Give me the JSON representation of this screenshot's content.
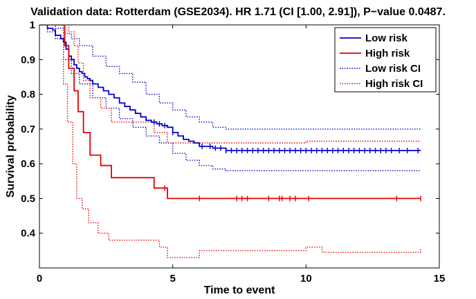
{
  "chart_data": {
    "type": "line",
    "title": "Validation data: Rotterdam (GSE2034). HR 1.71 (CI [1.00, 2.91]), P−value 0.0487.",
    "xlabel": "Time to event",
    "ylabel": "Survival probability",
    "xlim": [
      0,
      15
    ],
    "ylim": [
      0.3,
      1.0
    ],
    "xticks": [
      0,
      5,
      10,
      15
    ],
    "yticks": [
      0.4,
      0.5,
      0.6,
      0.7,
      0.8,
      0.9,
      1
    ],
    "xtick_labels": [
      "0",
      "5",
      "10",
      "15"
    ],
    "ytick_labels": [
      "0.4",
      "0.5",
      "0.6",
      "0.7",
      "0.8",
      "0.9",
      "1"
    ],
    "grid": false,
    "legend_position": "top-right",
    "series": [
      {
        "name": "Low risk",
        "color": "#0000cc",
        "style": "solid",
        "x": [
          0,
          0.15,
          0.3,
          0.5,
          0.6,
          0.8,
          0.9,
          1.0,
          1.1,
          1.2,
          1.3,
          1.4,
          1.5,
          1.6,
          1.7,
          1.8,
          1.9,
          2.0,
          2.2,
          2.4,
          2.6,
          2.8,
          3.0,
          3.2,
          3.4,
          3.6,
          3.8,
          4.0,
          4.2,
          4.4,
          4.6,
          4.8,
          5.0,
          5.2,
          5.4,
          5.6,
          5.8,
          6.0,
          6.5,
          7.0,
          14.3
        ],
        "y": [
          1.0,
          1.0,
          0.99,
          0.985,
          0.97,
          0.96,
          0.95,
          0.93,
          0.91,
          0.9,
          0.885,
          0.875,
          0.865,
          0.86,
          0.85,
          0.845,
          0.84,
          0.83,
          0.82,
          0.81,
          0.8,
          0.79,
          0.775,
          0.765,
          0.755,
          0.745,
          0.735,
          0.725,
          0.72,
          0.715,
          0.71,
          0.705,
          0.69,
          0.68,
          0.67,
          0.665,
          0.66,
          0.65,
          0.645,
          0.638,
          0.638
        ],
        "censor_x": [
          4.3,
          4.5,
          4.7,
          5.0,
          6.1,
          6.4,
          6.6,
          6.8,
          7.0,
          7.2,
          7.4,
          7.6,
          7.8,
          8.0,
          8.2,
          8.4,
          8.6,
          8.8,
          9.0,
          9.2,
          9.4,
          9.6,
          9.8,
          10.0,
          10.2,
          10.4,
          10.6,
          10.8,
          11.0,
          11.2,
          11.4,
          11.6,
          11.8,
          12.0,
          12.2,
          12.4,
          12.6,
          12.8,
          13.0,
          13.2,
          13.5,
          13.8,
          14.2
        ]
      },
      {
        "name": "High risk",
        "color": "#e00000",
        "style": "solid",
        "x": [
          0,
          0.95,
          1.1,
          1.3,
          1.45,
          1.65,
          1.9,
          2.3,
          2.7,
          4.3,
          4.8,
          14.3
        ],
        "y": [
          1.0,
          0.94,
          0.875,
          0.81,
          0.75,
          0.69,
          0.625,
          0.595,
          0.56,
          0.53,
          0.5,
          0.5
        ],
        "censor_x": [
          4.7,
          6.0,
          7.4,
          7.6,
          7.8,
          8.6,
          9.0,
          9.1,
          9.4,
          9.6,
          10.1,
          13.4,
          14.3
        ]
      },
      {
        "name": "Low risk CI",
        "color": "#0000cc",
        "style": "dotted",
        "bands": [
          {
            "x": [
              0,
              0.3,
              0.6,
              0.9,
              1.2,
              1.5,
              2.0,
              2.5,
              3.0,
              3.5,
              4.0,
              4.5,
              5.0,
              5.5,
              6.0,
              6.5,
              7.0,
              14.3
            ],
            "y": [
              1.0,
              1.0,
              0.99,
              0.975,
              0.96,
              0.94,
              0.91,
              0.88,
              0.86,
              0.835,
              0.8,
              0.775,
              0.755,
              0.735,
              0.72,
              0.705,
              0.7,
              0.7
            ]
          },
          {
            "x": [
              0,
              0.3,
              0.6,
              0.9,
              1.2,
              1.5,
              2.0,
              2.5,
              3.0,
              3.5,
              4.0,
              4.5,
              5.0,
              5.5,
              6.0,
              6.5,
              7.0,
              14.3
            ],
            "y": [
              1.0,
              0.98,
              0.96,
              0.9,
              0.86,
              0.83,
              0.79,
              0.76,
              0.73,
              0.705,
              0.68,
              0.66,
              0.63,
              0.61,
              0.595,
              0.585,
              0.58,
              0.58
            ]
          }
        ]
      },
      {
        "name": "High risk CI",
        "color": "#e00000",
        "style": "dotted",
        "bands": [
          {
            "x": [
              0,
              0.95,
              1.1,
              1.3,
              1.45,
              1.65,
              1.9,
              2.3,
              2.7,
              4.3,
              4.8,
              6.0,
              10.0,
              14.3
            ],
            "y": [
              1.0,
              1.0,
              0.98,
              0.94,
              0.89,
              0.84,
              0.79,
              0.76,
              0.72,
              0.69,
              0.66,
              0.66,
              0.665,
              0.665
            ]
          },
          {
            "x": [
              0,
              0.9,
              1.05,
              1.25,
              1.4,
              1.6,
              1.85,
              2.2,
              2.6,
              4.0,
              4.5,
              4.8,
              5.5,
              6.0,
              8.0,
              10.0,
              10.6,
              14.3
            ],
            "y": [
              1.0,
              0.83,
              0.72,
              0.6,
              0.5,
              0.47,
              0.43,
              0.4,
              0.38,
              0.38,
              0.36,
              0.33,
              0.33,
              0.35,
              0.35,
              0.36,
              0.345,
              0.355
            ]
          }
        ]
      }
    ]
  }
}
